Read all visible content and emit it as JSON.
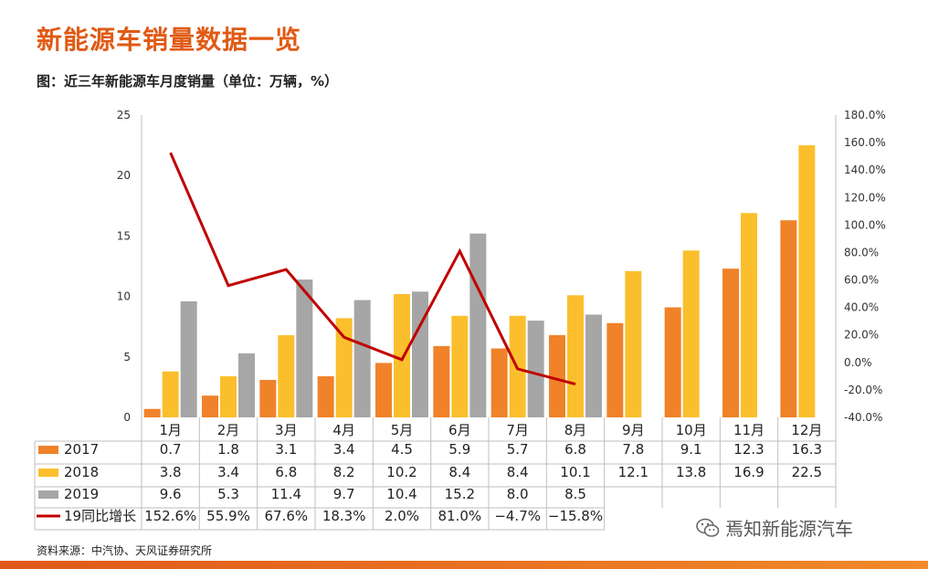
{
  "header": {
    "title": "新能源车销量数据一览",
    "subtitle": "图：近三年新能源车月度销量（单位：万辆，%）"
  },
  "source": "资料来源：中汽协、天风证券研究所",
  "watermark": "焉知新能源汽车",
  "colors": {
    "s2017": "#f0822a",
    "s2018": "#fbbf2d",
    "s2019": "#a6a6a6",
    "growth": "#c00000",
    "title": "#e05a14"
  },
  "chart_data": {
    "type": "bar",
    "categories": [
      "1月",
      "2月",
      "3月",
      "4月",
      "5月",
      "6月",
      "7月",
      "8月",
      "9月",
      "10月",
      "11月",
      "12月"
    ],
    "y_left": {
      "ticks": [
        "0",
        "5",
        "10",
        "15",
        "20",
        "25"
      ],
      "ylim": [
        0,
        25
      ]
    },
    "y_right": {
      "ticks": [
        "-40.0%",
        "-20.0%",
        "0.0%",
        "20.0%",
        "40.0%",
        "60.0%",
        "80.0%",
        "100.0%",
        "120.0%",
        "140.0%",
        "160.0%",
        "180.0%"
      ],
      "ylim": [
        -40,
        180
      ]
    },
    "series": [
      {
        "name": "2017",
        "type": "bar",
        "values": [
          0.7,
          1.8,
          3.1,
          3.4,
          4.5,
          5.9,
          5.7,
          6.8,
          7.8,
          9.1,
          12.3,
          16.3
        ],
        "labels": [
          "0.7",
          "1.8",
          "3.1",
          "3.4",
          "4.5",
          "5.9",
          "5.7",
          "6.8",
          "7.8",
          "9.1",
          "12.3",
          "16.3"
        ]
      },
      {
        "name": "2018",
        "type": "bar",
        "values": [
          3.8,
          3.4,
          6.8,
          8.2,
          10.2,
          8.4,
          8.4,
          10.1,
          12.1,
          13.8,
          16.9,
          22.5
        ],
        "labels": [
          "3.8",
          "3.4",
          "6.8",
          "8.2",
          "10.2",
          "8.4",
          "8.4",
          "10.1",
          "12.1",
          "13.8",
          "16.9",
          "22.5"
        ]
      },
      {
        "name": "2019",
        "type": "bar",
        "values": [
          9.6,
          5.3,
          11.4,
          9.7,
          10.4,
          15.2,
          8.0,
          8.5,
          null,
          null,
          null,
          null
        ],
        "labels": [
          "9.6",
          "5.3",
          "11.4",
          "9.7",
          "10.4",
          "15.2",
          "8.0",
          "8.5",
          "",
          "",
          "",
          ""
        ]
      },
      {
        "name": "19同比增长",
        "type": "line",
        "axis": "right",
        "values": [
          152.6,
          55.9,
          67.6,
          18.3,
          2.0,
          81.0,
          -4.7,
          -15.8,
          null,
          null,
          null,
          null
        ],
        "labels": [
          "152.6%",
          "55.9%",
          "67.6%",
          "18.3%",
          "2.0%",
          "81.0%",
          "−4.7%",
          "−15.8%",
          "",
          "",
          "",
          ""
        ]
      }
    ]
  }
}
